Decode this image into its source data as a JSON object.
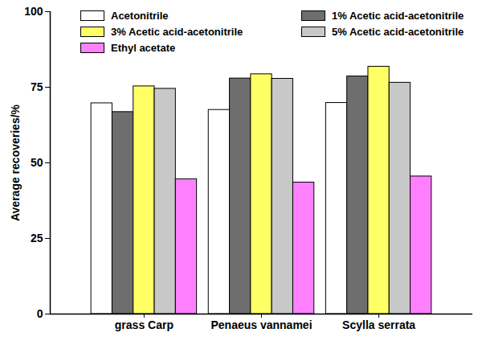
{
  "chart_data": {
    "type": "bar",
    "categories": [
      "grass Carp",
      "Penaeus vannamei",
      "Scylla serrata"
    ],
    "series": [
      {
        "name": "Acetonitrile",
        "color": "#ffffff",
        "values": [
          69.7,
          67.5,
          69.8
        ]
      },
      {
        "name": "1% Acetic acid-acetonitrile",
        "color": "#6e6e6e",
        "values": [
          66.8,
          77.9,
          78.6
        ]
      },
      {
        "name": "3% Acetic acid-acetonitrile",
        "color": "#ffff66",
        "values": [
          75.3,
          79.3,
          81.8
        ]
      },
      {
        "name": "5% Acetic acid-acetonitrile",
        "color": "#c8c8c8",
        "values": [
          74.5,
          77.8,
          76.5
        ]
      },
      {
        "name": "Ethyl acetate",
        "color": "#ff80ff",
        "values": [
          44.6,
          43.5,
          45.5
        ]
      }
    ],
    "y_label": "Average recoveries/%",
    "ylim": [
      0,
      100
    ],
    "yticks": [
      0,
      25,
      50,
      75,
      100
    ],
    "grid": false,
    "legend": "top"
  }
}
